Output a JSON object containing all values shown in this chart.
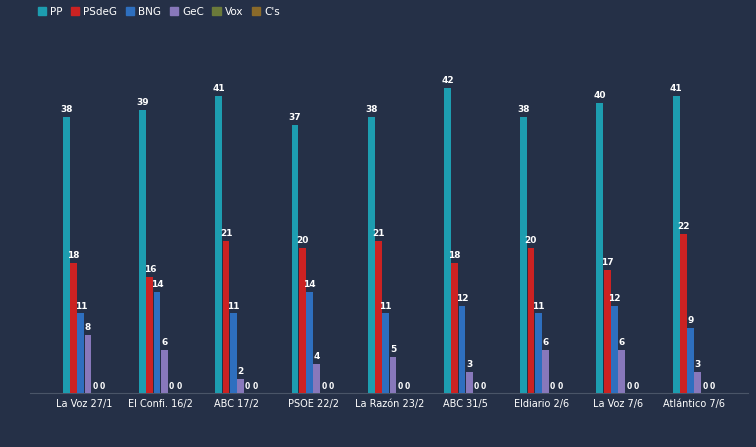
{
  "background_color": "#253047",
  "bar_width": 0.09,
  "categories": [
    "La Voz 27/1",
    "El Confi. 16/2",
    "ABC 17/2",
    "PSOE 22/2",
    "La Razón 23/2",
    "ABC 31/5",
    "Eldiario 2/6",
    "La Voz 7/6",
    "Atlántico 7/6"
  ],
  "series": [
    {
      "name": "PP",
      "color": "#1d9db0",
      "values": [
        38,
        39,
        41,
        37,
        38,
        42,
        38,
        40,
        41
      ]
    },
    {
      "name": "PSdeG",
      "color": "#cc2222",
      "values": [
        18,
        16,
        21,
        20,
        21,
        18,
        20,
        17,
        22
      ]
    },
    {
      "name": "BNG",
      "color": "#2e6fbf",
      "values": [
        11,
        14,
        11,
        14,
        11,
        12,
        11,
        12,
        9
      ]
    },
    {
      "name": "GeC",
      "color": "#8878bb",
      "values": [
        8,
        6,
        2,
        4,
        5,
        3,
        6,
        6,
        3
      ]
    },
    {
      "name": "Vox",
      "color": "#6b7a3a",
      "values": [
        0,
        0,
        0,
        0,
        0,
        0,
        0,
        0,
        0
      ]
    },
    {
      "name": "C's",
      "color": "#8a6a2a",
      "values": [
        0,
        0,
        0,
        0,
        0,
        0,
        0,
        0,
        0
      ]
    }
  ],
  "ylim": [
    0,
    48
  ],
  "text_color": "#ffffff",
  "label_fontsize": 6.5,
  "legend_fontsize": 7.5,
  "tick_fontsize": 7,
  "zero_label_fontsize": 5.5
}
